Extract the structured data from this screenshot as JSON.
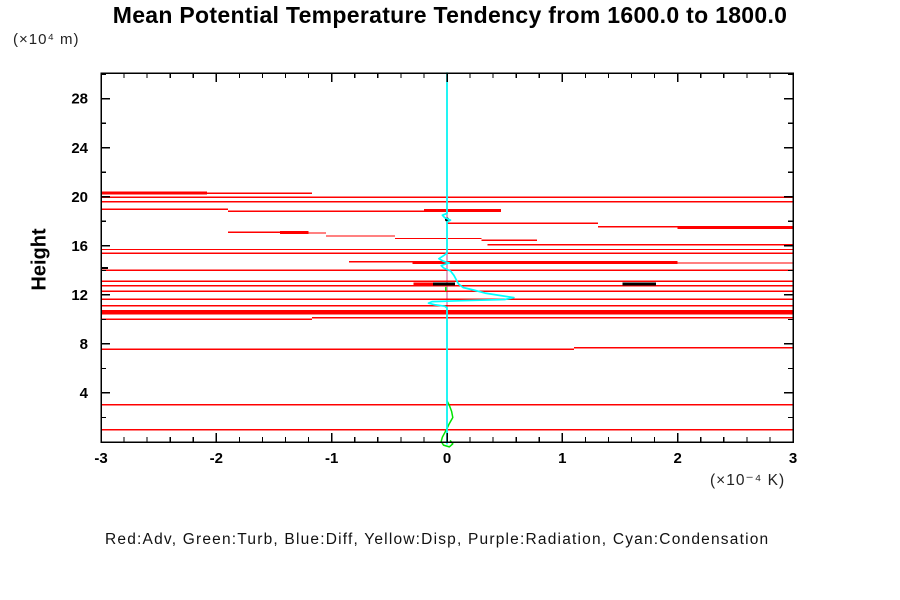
{
  "chart_data": {
    "type": "line",
    "title": "Mean Potential Temperature Tendency from 1600.0 to 1800.0",
    "ylabel": "Height",
    "ylabel_unit": "(×10⁴ m)",
    "xlabel_unit": "(×10⁻⁴ K)",
    "legend_text": "Red:Adv, Green:Turb, Blue:Diff, Yellow:Disp, Purple:Radiation, Cyan:Condensation",
    "xlim": [
      -3,
      3
    ],
    "ylim": [
      0,
      30.1
    ],
    "grid": false,
    "x_major_ticks": [
      -3,
      -2,
      -1,
      0,
      1,
      2,
      3
    ],
    "x_major_labels": [
      "-3",
      "-2",
      "-1",
      "0",
      "1",
      "2",
      "3"
    ],
    "x_minor_step": 0.2,
    "y_major_ticks": [
      4,
      8,
      12,
      16,
      20,
      24,
      28
    ],
    "y_major_labels": [
      "4",
      "8",
      "12",
      "16",
      "20",
      "24",
      "28"
    ],
    "y_minor_ticks": [
      2,
      6,
      10,
      14,
      18,
      22,
      26,
      30
    ],
    "frame_color": "#000000",
    "series": [
      {
        "name": "Disp",
        "color": "#ffff00",
        "type": "path",
        "width": 1.5,
        "points": [
          [
            0,
            30.1
          ],
          [
            0,
            0.15
          ]
        ]
      },
      {
        "name": "Radiation",
        "color": "#d98fd9",
        "type": "path",
        "width": 1.6,
        "points": [
          [
            0,
            30.1
          ],
          [
            0,
            0.15
          ]
        ]
      },
      {
        "name": "Adv",
        "color": "#ff0000",
        "type": "hsegments",
        "segments": [
          [
            20.3,
            -3,
            -2.08,
            3
          ],
          [
            20.3,
            -2.08,
            -1.17,
            1.4
          ],
          [
            19.95,
            -3,
            3,
            1.4
          ],
          [
            19.6,
            -3,
            3,
            1.4
          ],
          [
            19.0,
            -3,
            -1.9,
            1.4
          ],
          [
            18.82,
            -1.9,
            -0.2,
            1.4
          ],
          [
            18.9,
            -0.2,
            0.47,
            3
          ],
          [
            17.85,
            0,
            1.31,
            1.4
          ],
          [
            17.55,
            1.31,
            3,
            1.4
          ],
          [
            17.42,
            2.0,
            3,
            1.4
          ],
          [
            17.48,
            2.4,
            2.95,
            3
          ],
          [
            17.1,
            -1.9,
            -1.45,
            1.4
          ],
          [
            17.1,
            -1.45,
            -1.2,
            3
          ],
          [
            17.05,
            -1.2,
            -1.05,
            1.4
          ],
          [
            16.8,
            -1.05,
            -0.45,
            1.4
          ],
          [
            16.6,
            -0.45,
            0.3,
            1.4
          ],
          [
            16.45,
            0.3,
            0.78,
            1.4
          ],
          [
            16.1,
            0.35,
            3,
            1.4
          ],
          [
            15.7,
            -3,
            3,
            1.4
          ],
          [
            15.4,
            -3,
            3,
            1.4
          ],
          [
            14.7,
            -0.85,
            -0.3,
            1.4
          ],
          [
            14.65,
            -0.3,
            2.0,
            3
          ],
          [
            14.6,
            2.0,
            3,
            1.4
          ],
          [
            14.0,
            -3,
            3,
            1.4
          ],
          [
            13.1,
            -3,
            3,
            1.4
          ],
          [
            12.9,
            -0.29,
            -0.12,
            3
          ],
          [
            12.75,
            -3,
            3,
            1.4
          ],
          [
            12.3,
            -3,
            3,
            1.4
          ],
          [
            11.65,
            -3,
            3,
            1.4
          ],
          [
            11.1,
            -3,
            3,
            1.4
          ],
          [
            10.6,
            -3,
            3,
            4.5
          ],
          [
            10.0,
            -3,
            -1.17,
            1.4
          ],
          [
            10.15,
            -1.17,
            3,
            1.4
          ],
          [
            7.55,
            -3,
            1.1,
            1.4
          ],
          [
            7.7,
            1.1,
            3,
            1.4
          ],
          [
            3.05,
            -3,
            3,
            1.4
          ],
          [
            1.0,
            -3,
            3,
            1.4
          ]
        ]
      },
      {
        "name": "Diff",
        "color": "#000000",
        "type": "hsegments",
        "segments": [
          [
            12.9,
            -0.12,
            0.07,
            3
          ],
          [
            12.9,
            1.52,
            1.81,
            3
          ],
          [
            14.2,
            -3,
            -2.94,
            2
          ]
        ],
        "dot": [
          0,
          18.15
        ]
      },
      {
        "name": "Turb",
        "color": "#00e400",
        "type": "path",
        "width": 1.5,
        "points": [
          [
            0,
            3.35
          ],
          [
            0.02,
            3.0
          ],
          [
            0.04,
            2.5
          ],
          [
            0.05,
            2.0
          ],
          [
            0.02,
            1.5
          ],
          [
            0,
            1.1
          ],
          [
            -0.02,
            0.75
          ],
          [
            -0.04,
            0.4
          ],
          [
            -0.05,
            0.05
          ],
          [
            -0.03,
            -0.25
          ],
          [
            0.02,
            -0.4
          ],
          [
            0.05,
            -0.15
          ],
          [
            0.03,
            0.1
          ]
        ],
        "extra_paths": [
          [
            [
              -0.01,
              12.6
            ],
            [
              -0.01,
              12.35
            ]
          ]
        ]
      },
      {
        "name": "Condensation",
        "color": "#00ffff",
        "type": "path",
        "width": 1.7,
        "points": [
          [
            0,
            30.1
          ],
          [
            0,
            18.65
          ],
          [
            -0.04,
            18.5
          ],
          [
            -0.02,
            18.3
          ],
          [
            0.03,
            18.1
          ],
          [
            0,
            17.95
          ],
          [
            0,
            15.4
          ],
          [
            -0.03,
            15.2
          ],
          [
            -0.07,
            14.95
          ],
          [
            -0.03,
            14.75
          ],
          [
            0.02,
            14.6
          ],
          [
            -0.05,
            14.4
          ],
          [
            -0.03,
            14.2
          ],
          [
            0.03,
            13.95
          ],
          [
            0.06,
            13.6
          ],
          [
            0.08,
            13.25
          ],
          [
            0.1,
            12.9
          ],
          [
            0.14,
            12.6
          ],
          [
            0.23,
            12.4
          ],
          [
            0.33,
            12.15
          ],
          [
            0.46,
            11.95
          ],
          [
            0.58,
            11.78
          ],
          [
            0.5,
            11.62
          ],
          [
            0.1,
            11.52
          ],
          [
            -0.13,
            11.45
          ],
          [
            -0.16,
            11.32
          ],
          [
            -0.1,
            11.18
          ],
          [
            -0.02,
            11.08
          ],
          [
            0,
            10.95
          ],
          [
            0,
            -0.15
          ]
        ]
      }
    ]
  }
}
